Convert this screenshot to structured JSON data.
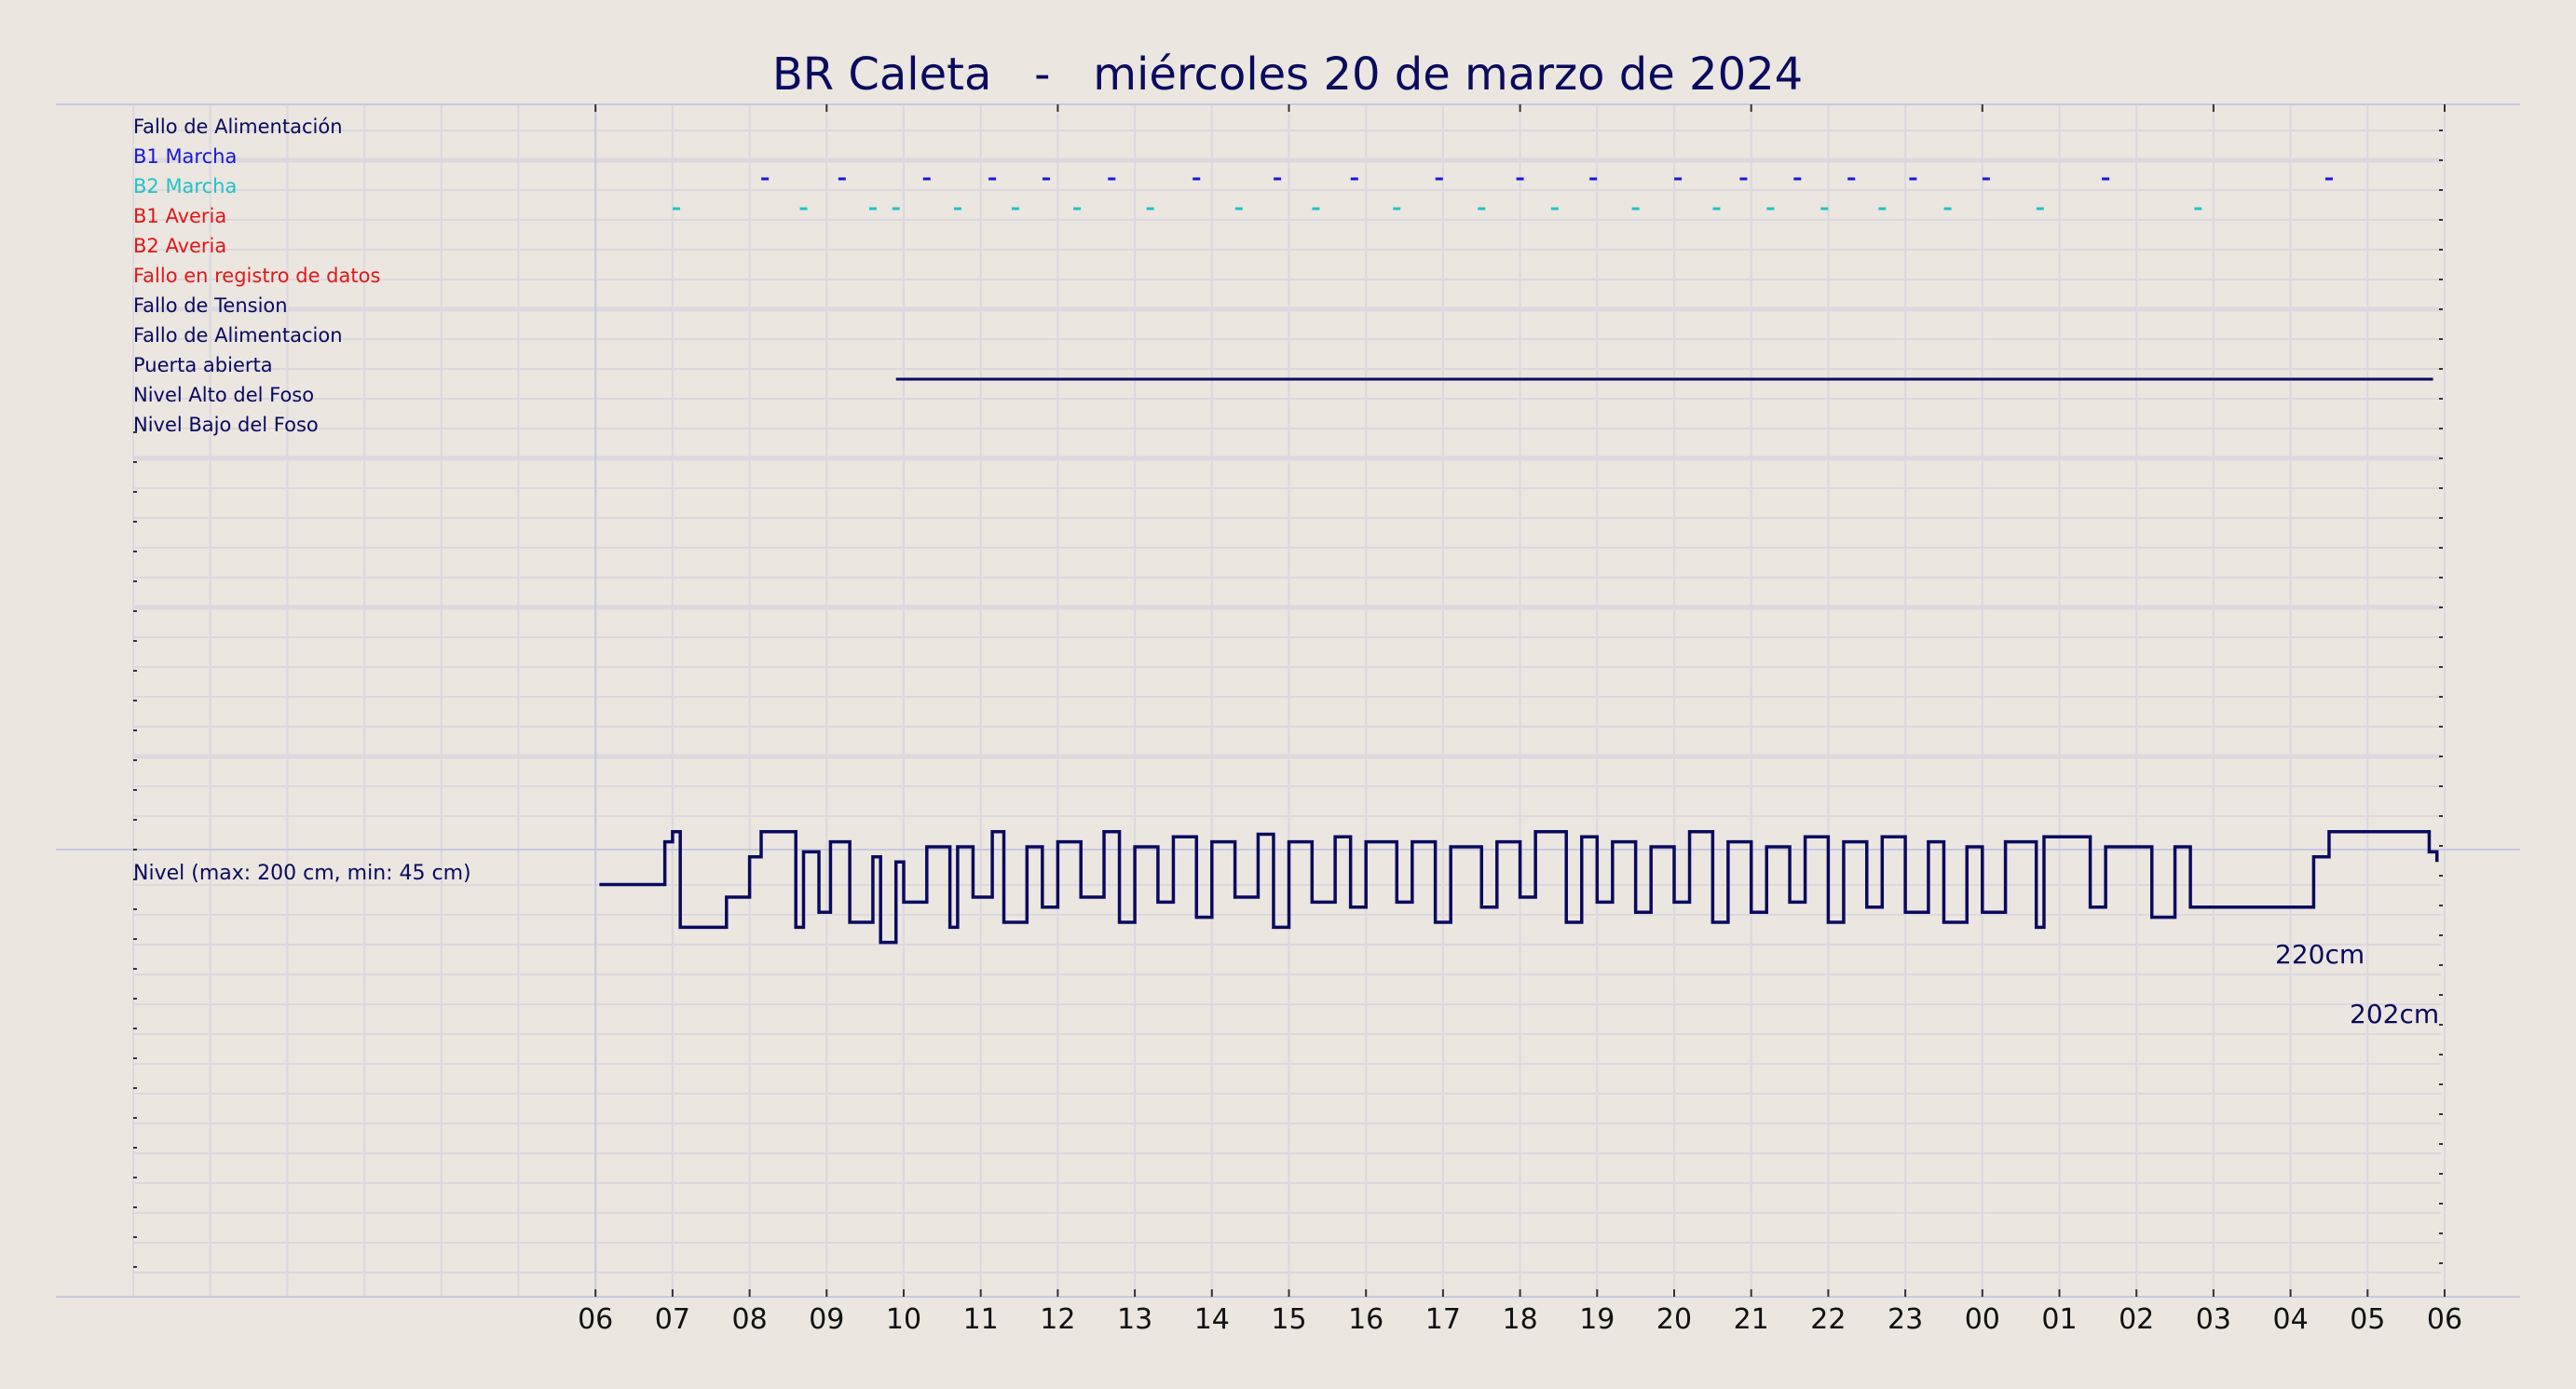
{
  "chart_data": {
    "type": "line",
    "title": "BR Caleta   -   miércoles 20 de marzo de 2024",
    "colors": {
      "background": "#ebe6e0",
      "navy": "#0a0a5e",
      "blue": "#1818d8",
      "cyan": "#22c2c8",
      "red": "#e01818",
      "grid": "#dcd8de",
      "frame": "#c8c8e0"
    },
    "signals": [
      {
        "label": "Fallo de Alimentación",
        "color": "#0a0a5e",
        "events": []
      },
      {
        "label": "B1 Marcha",
        "color": "#1818d8",
        "events": [
          8.2,
          9.2,
          10.3,
          11.15,
          11.85,
          12.7,
          13.8,
          14.85,
          15.85,
          16.95,
          18.0,
          18.95,
          20.05,
          20.9,
          21.6,
          22.3,
          23.1,
          24.05,
          25.6,
          28.5
        ]
      },
      {
        "label": "B2 Marcha",
        "color": "#22c2c8",
        "events": [
          7.05,
          8.7,
          9.6,
          9.9,
          10.7,
          11.45,
          12.25,
          13.2,
          14.35,
          15.35,
          16.4,
          17.5,
          18.45,
          19.5,
          20.55,
          21.25,
          21.95,
          22.7,
          23.55,
          24.75,
          26.8
        ]
      },
      {
        "label": "B1 Averia",
        "color": "#e01818",
        "events": []
      },
      {
        "label": "B2 Averia",
        "color": "#e01818",
        "events": []
      },
      {
        "label": "Fallo en registro de datos",
        "color": "#e01818",
        "events": []
      },
      {
        "label": "Fallo de Tension",
        "color": "#0a0a5e",
        "events": []
      },
      {
        "label": "Fallo de Alimentacion",
        "color": "#0a0a5e",
        "events": []
      },
      {
        "label": "Puerta abierta",
        "color": "#0a0a5e",
        "events": [],
        "on_from": 9.9,
        "on_to": 29.85
      },
      {
        "label": "Nivel Alto del Foso",
        "color": "#0a0a5e",
        "events": []
      },
      {
        "label": "Nivel Bajo del Foso",
        "color": "#0a0a5e",
        "events": []
      }
    ],
    "level": {
      "label": "Nivel (max: 200 cm, min: 45 cm)",
      "series": [
        {
          "name": "Nivel",
          "x": [
            6.05,
            6.9,
            7.0,
            7.1,
            7.7,
            8.0,
            8.15,
            8.6,
            8.7,
            8.9,
            9.05,
            9.3,
            9.6,
            9.7,
            9.9,
            10.0,
            10.3,
            10.6,
            10.7,
            10.9,
            11.15,
            11.3,
            11.6,
            11.8,
            12.0,
            12.3,
            12.6,
            12.8,
            13.0,
            13.3,
            13.5,
            13.8,
            14.0,
            14.3,
            14.6,
            14.8,
            15.0,
            15.3,
            15.6,
            15.8,
            16.0,
            16.4,
            16.6,
            16.9,
            17.1,
            17.5,
            17.7,
            18.0,
            18.2,
            18.6,
            18.8,
            19.0,
            19.2,
            19.5,
            19.7,
            20.0,
            20.2,
            20.5,
            20.7,
            21.0,
            21.2,
            21.5,
            21.7,
            22.0,
            22.2,
            22.5,
            22.7,
            23.0,
            23.3,
            23.5,
            23.8,
            24.0,
            24.3,
            24.7,
            24.8,
            25.4,
            25.6,
            26.2,
            26.5,
            26.7,
            28.3,
            28.5,
            29.8,
            29.9
          ],
          "y": [
            155,
            172,
            176,
            138,
            150,
            166,
            176,
            138,
            168,
            144,
            172,
            140,
            166,
            132,
            164,
            148,
            170,
            138,
            170,
            150,
            176,
            140,
            170,
            146,
            172,
            150,
            176,
            140,
            170,
            148,
            174,
            142,
            172,
            150,
            175,
            138,
            172,
            148,
            174,
            146,
            172,
            148,
            172,
            140,
            170,
            146,
            172,
            150,
            176,
            140,
            174,
            148,
            172,
            144,
            170,
            148,
            176,
            140,
            172,
            144,
            170,
            148,
            174,
            140,
            172,
            146,
            174,
            144,
            172,
            140,
            170,
            144,
            172,
            138,
            174,
            146,
            170,
            142,
            170,
            146,
            166,
            176,
            168,
            164
          ]
        }
      ]
    },
    "x_ticks": [
      "06",
      "07",
      "08",
      "09",
      "10",
      "11",
      "12",
      "13",
      "14",
      "15",
      "16",
      "17",
      "18",
      "19",
      "20",
      "21",
      "22",
      "23",
      "00",
      "01",
      "02",
      "03",
      "04",
      "05",
      "06"
    ],
    "x_range": [
      0,
      30
    ],
    "grid": true,
    "annotations": [
      "220cm",
      "202cm"
    ]
  }
}
